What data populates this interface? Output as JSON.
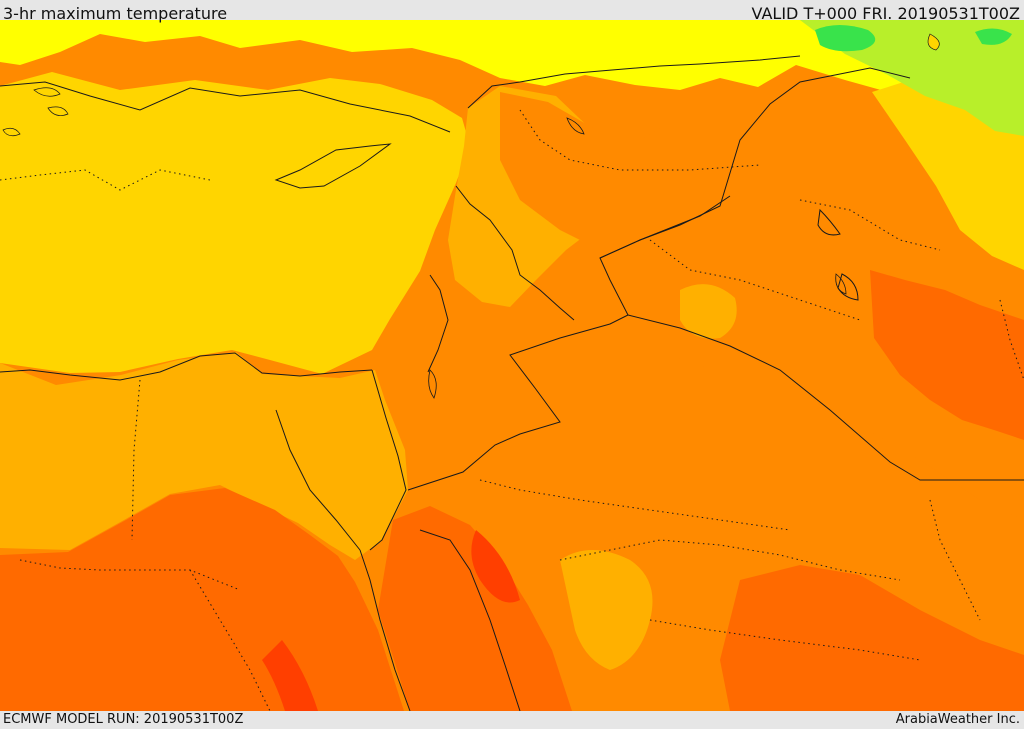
{
  "header": {
    "title": "3-hr maximum temperature",
    "valid": "VALID T+000 FRI. 20190531T00Z"
  },
  "footer": {
    "model_run": "ECMWF MODEL RUN: 20190531T00Z",
    "credit": "ArabiaWeather Inc."
  },
  "map": {
    "type": "temperature-field",
    "colors": {
      "cool_green": "#39e34b",
      "light_green": "#b8ef2a",
      "yellow": "#ffff00",
      "gold": "#ffd500",
      "amber": "#ffb000",
      "orange": "#ff8a00",
      "deep_orange": "#ff6a00",
      "red_orange": "#ff3f00",
      "border_line": "#1a1a1a"
    }
  }
}
